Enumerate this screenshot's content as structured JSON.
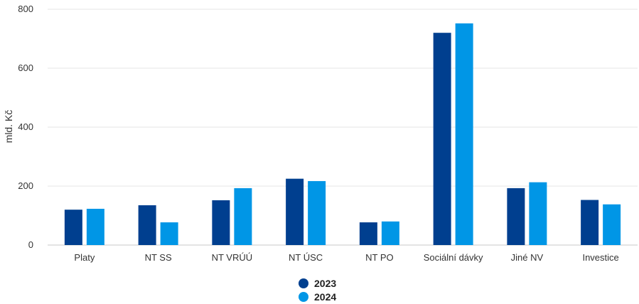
{
  "chart_data": {
    "type": "bar",
    "ylabel": "mld. Kč",
    "ylim": [
      0,
      800
    ],
    "yticks": [
      0,
      200,
      400,
      600,
      800
    ],
    "grid": true,
    "legend_position": "bottom",
    "categories": [
      "Platy",
      "NT SS",
      "NT VRÚÚ",
      "NT ÚSC",
      "NT PO",
      "Sociální dávky",
      "Jiné NV",
      "Investice"
    ],
    "series": [
      {
        "name": "2023",
        "color": "#003f8f",
        "values": [
          120,
          135,
          152,
          225,
          77,
          720,
          193,
          153
        ]
      },
      {
        "name": "2024",
        "color": "#0096e6",
        "values": [
          123,
          77,
          193,
          217,
          80,
          752,
          213,
          138
        ]
      }
    ]
  },
  "legend": {
    "items": [
      {
        "label": "2023",
        "color": "#003f8f"
      },
      {
        "label": "2024",
        "color": "#0096e6"
      }
    ]
  }
}
